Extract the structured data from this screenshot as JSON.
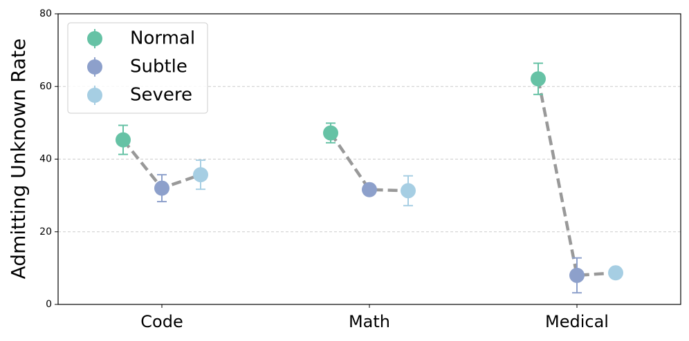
{
  "chart_data": {
    "type": "pointplot",
    "ylabel": "Admitting Unknown Rate",
    "categories": [
      "Code",
      "Math",
      "Medical"
    ],
    "series": [
      {
        "name": "Normal",
        "color": "#66c2a5",
        "values": [
          45.3,
          47.2,
          62.1
        ],
        "errors": [
          4.0,
          2.7,
          4.3
        ]
      },
      {
        "name": "Subtle",
        "color": "#8da0cb",
        "values": [
          32.0,
          31.6,
          8.0
        ],
        "errors": [
          3.7,
          0.5,
          4.8
        ]
      },
      {
        "name": "Severe",
        "color": "#a6cee3",
        "values": [
          35.7,
          31.3,
          8.7
        ],
        "errors": [
          4.0,
          4.1,
          0.5
        ]
      }
    ],
    "ylim": [
      0,
      80
    ],
    "yticks": [
      0,
      20,
      40,
      60,
      80
    ],
    "grid": true,
    "legend": "upper left"
  }
}
